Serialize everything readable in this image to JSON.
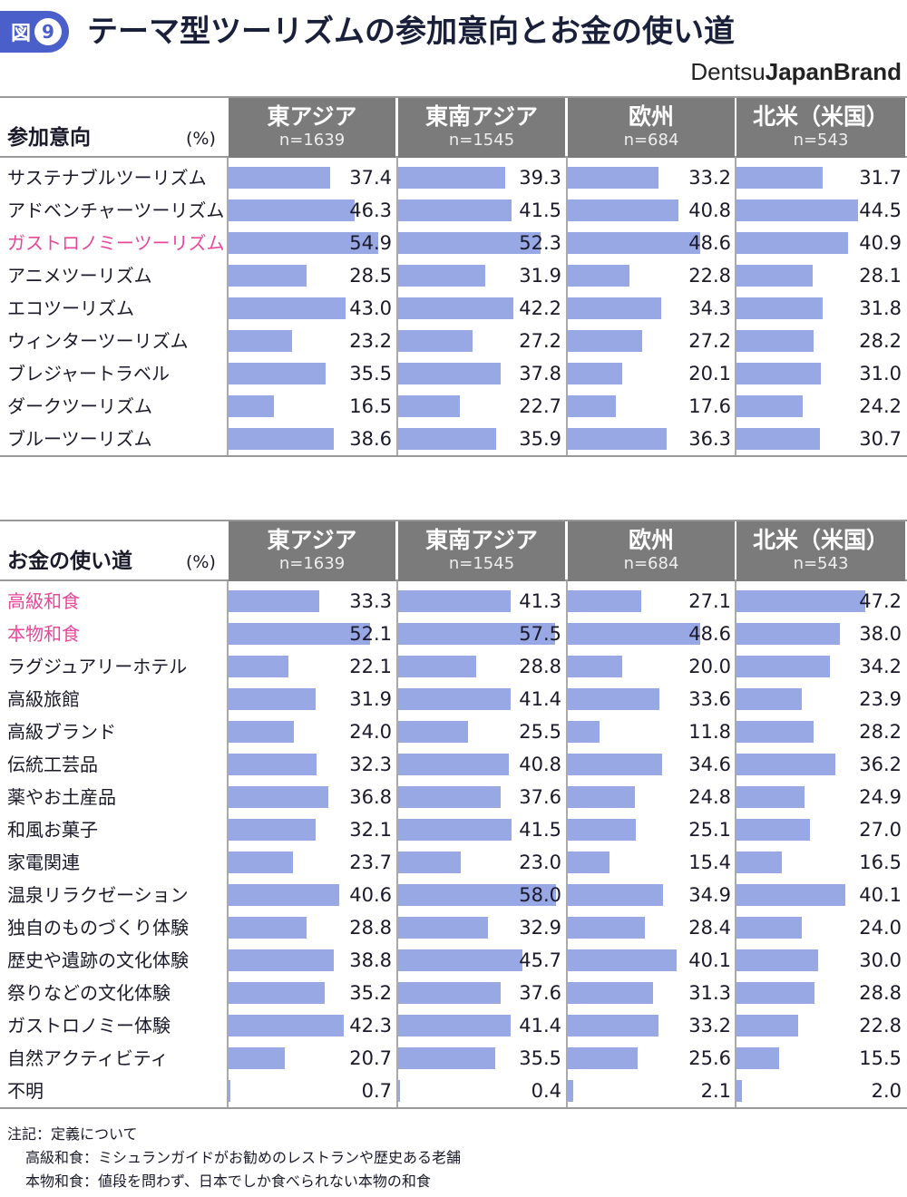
{
  "header": {
    "badge_label": "図",
    "badge_number": "9",
    "title": "テーマ型ツーリズムの参加意向とお金の使い道",
    "brand_light": "Dentsu",
    "brand_bold": "JapanBrand"
  },
  "colors": {
    "bar": "#97a8e4",
    "header": "#7b7b7b",
    "highlight": "#e8479a",
    "badge": "#4a5fc9"
  },
  "chart_data": [
    {
      "type": "bar",
      "title": "参加意向",
      "unit": "(%)",
      "regions": [
        {
          "name": "東アジア",
          "n": "n=1639"
        },
        {
          "name": "東南アジア",
          "n": "n=1545"
        },
        {
          "name": "欧州",
          "n": "n=684"
        },
        {
          "name": "北米（米国）",
          "n": "n=543"
        }
      ],
      "categories": [
        "サステナブルツーリズム",
        "アドベンチャーツーリズム",
        "ガストロノミーツーリズム",
        "アニメツーリズム",
        "エコツーリズム",
        "ウィンターツーリズム",
        "ブレジャートラベル",
        "ダークツーリズム",
        "ブルーツーリズム"
      ],
      "highlighted": [
        "ガストロノミーツーリズム"
      ],
      "values": [
        [
          "37.4",
          "39.3",
          "33.2",
          "31.7"
        ],
        [
          "46.3",
          "41.5",
          "40.8",
          "44.5"
        ],
        [
          "54.9",
          "52.3",
          "48.6",
          "40.9"
        ],
        [
          "28.5",
          "31.9",
          "22.8",
          "28.1"
        ],
        [
          "43.0",
          "42.2",
          "34.3",
          "31.8"
        ],
        [
          "23.2",
          "27.2",
          "27.2",
          "28.2"
        ],
        [
          "35.5",
          "37.8",
          "20.1",
          "31.0"
        ],
        [
          "16.5",
          "22.7",
          "17.6",
          "24.2"
        ],
        [
          "38.6",
          "35.9",
          "36.3",
          "30.7"
        ]
      ],
      "xlim": [
        0,
        60
      ]
    },
    {
      "type": "bar",
      "title": "お金の使い道",
      "unit": "(%)",
      "regions": [
        {
          "name": "東アジア",
          "n": "n=1639"
        },
        {
          "name": "東南アジア",
          "n": "n=1545"
        },
        {
          "name": "欧州",
          "n": "n=684"
        },
        {
          "name": "北米（米国）",
          "n": "n=543"
        }
      ],
      "categories": [
        "高級和食",
        "本物和食",
        "ラグジュアリーホテル",
        "高級旅館",
        "高級ブランド",
        "伝統工芸品",
        "薬やお土産品",
        "和風お菓子",
        "家電関連",
        "温泉リラクゼーション",
        "独自のものづくり体験",
        "歴史や遺跡の文化体験",
        "祭りなどの文化体験",
        "ガストロノミー体験",
        "自然アクティビティ",
        "不明"
      ],
      "highlighted": [
        "高級和食",
        "本物和食"
      ],
      "values": [
        [
          "33.3",
          "41.3",
          "27.1",
          "47.2"
        ],
        [
          "52.1",
          "57.5",
          "48.6",
          "38.0"
        ],
        [
          "22.1",
          "28.8",
          "20.0",
          "34.2"
        ],
        [
          "31.9",
          "41.4",
          "33.6",
          "23.9"
        ],
        [
          "24.0",
          "25.5",
          "11.8",
          "28.2"
        ],
        [
          "32.3",
          "40.8",
          "34.6",
          "36.2"
        ],
        [
          "36.8",
          "37.6",
          "24.8",
          "24.9"
        ],
        [
          "32.1",
          "41.5",
          "25.1",
          "27.0"
        ],
        [
          "23.7",
          "23.0",
          "15.4",
          "16.5"
        ],
        [
          "40.6",
          "58.0",
          "34.9",
          "40.1"
        ],
        [
          "28.8",
          "32.9",
          "28.4",
          "24.0"
        ],
        [
          "38.8",
          "45.7",
          "40.1",
          "30.0"
        ],
        [
          "35.2",
          "37.6",
          "31.3",
          "28.8"
        ],
        [
          "42.3",
          "41.4",
          "33.2",
          "22.8"
        ],
        [
          "20.7",
          "35.5",
          "25.6",
          "15.5"
        ],
        [
          "0.7",
          "0.4",
          "2.1",
          "2.0"
        ]
      ],
      "xlim": [
        0,
        60
      ]
    }
  ],
  "notes": {
    "heading": "注記：定義について",
    "lines": [
      "高級和食：ミシュランガイドがお勧めのレストランや歴史ある老舗",
      "本物和食：値段を問わず、日本でしか食べられない本物の和食"
    ]
  }
}
